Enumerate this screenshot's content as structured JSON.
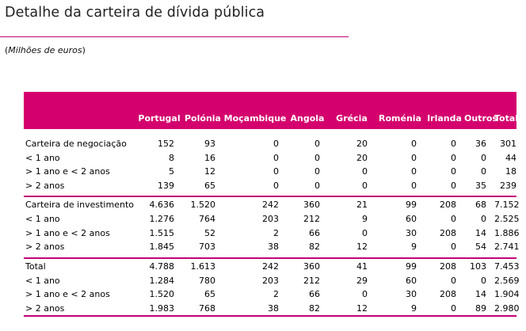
{
  "title": "Detalhe da carteira de dívida pública",
  "subtitle": {
    "open": "(",
    "text": "Milhões de euros",
    "close": ")"
  },
  "table": {
    "headers": [
      "Portugal",
      "Polónia",
      "Moçambique",
      "Angola",
      "Grécia",
      "Roménia",
      "Irlanda",
      "Outros",
      "Total"
    ],
    "groups": [
      {
        "rows": [
          {
            "label": "Carteira de negociação",
            "values": [
              "152",
              "93",
              "0",
              "0",
              "20",
              "0",
              "0",
              "36",
              "301"
            ]
          },
          {
            "label": "< 1 ano",
            "values": [
              "8",
              "16",
              "0",
              "0",
              "20",
              "0",
              "0",
              "0",
              "44"
            ]
          },
          {
            "label": "> 1 ano e < 2 anos",
            "values": [
              "5",
              "12",
              "0",
              "0",
              "0",
              "0",
              "0",
              "0",
              "18"
            ]
          },
          {
            "label": "> 2 anos",
            "values": [
              "139",
              "65",
              "0",
              "0",
              "0",
              "0",
              "0",
              "35",
              "239"
            ]
          }
        ]
      },
      {
        "rows": [
          {
            "label": "Carteira de investimento",
            "values": [
              "4.636",
              "1.520",
              "242",
              "360",
              "21",
              "99",
              "208",
              "68",
              "7.152"
            ]
          },
          {
            "label": "< 1 ano",
            "values": [
              "1.276",
              "764",
              "203",
              "212",
              "9",
              "60",
              "0",
              "0",
              "2.525"
            ]
          },
          {
            "label": "> 1 ano e < 2 anos",
            "values": [
              "1.515",
              "52",
              "2",
              "66",
              "0",
              "30",
              "208",
              "14",
              "1.886"
            ]
          },
          {
            "label": "> 2 anos",
            "values": [
              "1.845",
              "703",
              "38",
              "82",
              "12",
              "9",
              "0",
              "54",
              "2.741"
            ]
          }
        ]
      },
      {
        "rows": [
          {
            "label": "Total",
            "values": [
              "4.788",
              "1.613",
              "242",
              "360",
              "41",
              "99",
              "208",
              "103",
              "7.453"
            ]
          },
          {
            "label": "< 1 ano",
            "values": [
              "1.284",
              "780",
              "203",
              "212",
              "29",
              "60",
              "0",
              "0",
              "2.569"
            ]
          },
          {
            "label": "> 1 ano e < 2 anos",
            "values": [
              "1.520",
              "65",
              "2",
              "66",
              "0",
              "30",
              "208",
              "14",
              "1.904"
            ]
          },
          {
            "label": "> 2 anos",
            "values": [
              "1.983",
              "768",
              "38",
              "82",
              "12",
              "9",
              "0",
              "89",
              "2.980"
            ]
          }
        ]
      }
    ]
  },
  "colors": {
    "accent": "#d4006e",
    "rule": "#c4007a"
  }
}
